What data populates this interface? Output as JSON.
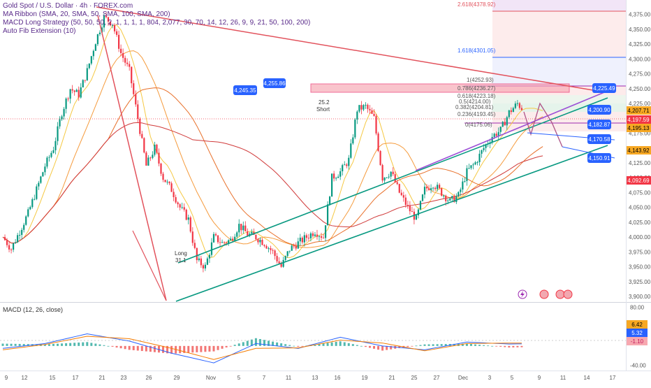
{
  "legend": {
    "title": "Gold Spot / U.S. Dollar · 4h · FOREX.com",
    "ma_ribbon": "MA Ribbon (SMA, 20, SMA, 50, SMA, 100, SMA, 200)",
    "macd_strategy": "MACD Long Strategy (50, 50, 50, 2, 1, 1, 1, 1, 804, 2,077, 30, 70, 14, 12, 26, 9, 9, 21, 50, 100, 200)",
    "fib": "Auto Fib Extension (10)"
  },
  "macd_label": "MACD (12, 26, close)",
  "fib_labels": {
    "f2618": "2.618(4378.92)",
    "f1618": "1.618(4301.05)",
    "f1": "1(4252.93)",
    "f0786": "0.786(4236.27)",
    "f0618": "0.618(4223.18)",
    "f05": "0.5(4214.00)",
    "f0382": "0.382(4204.81)",
    "f0236": "0.236(4193.45)",
    "f0": "0(4175.06)"
  },
  "annotations": {
    "short_val": "25.2",
    "short_txt": "Short",
    "long_txt": "Long",
    "long_val": "31.1"
  },
  "level_tags": {
    "left1": "4,255.86",
    "left2": "4,245.35",
    "r1": "4,225.49",
    "r2": "4,200.90",
    "r3": "4,182.87",
    "r4": "4,170.58",
    "r5": "4,150.91"
  },
  "price_tags": {
    "p1": "4,207.71",
    "p2": "4,197.59",
    "p3": "4,195.13",
    "p4": "4,143.92",
    "p5": "4,092.69"
  },
  "macd_tags": {
    "m1": "6.42",
    "m2": "5.32",
    "m3": "-1.10"
  },
  "colors": {
    "up": "#089981",
    "down": "#f23645",
    "blue_tag": "#2962ff"
  },
  "chart_data": {
    "type": "line",
    "title": "Gold Spot / U.S. Dollar · 4h · FOREX.com",
    "y_axis": {
      "ticks": [
        "4,375.00",
        "4,350.00",
        "4,325.00",
        "4,300.00",
        "4,275.00",
        "4,250.00",
        "4,225.00",
        "4,200.00",
        "4,175.00",
        "4,150.00",
        "4,125.00",
        "4,100.00",
        "4,075.00",
        "4,050.00",
        "4,025.00",
        "4,000.00",
        "3,975.00",
        "3,950.00",
        "3,925.00",
        "3,900.00"
      ],
      "range": [
        3893,
        4390
      ]
    },
    "macd_axis": {
      "ticks": [
        "80.00",
        "-40.00"
      ],
      "range": [
        -45,
        85
      ]
    },
    "x_axis": {
      "ticks": [
        "9",
        "12",
        "15",
        "17",
        "21",
        "23",
        "26",
        "29",
        "Nov",
        "5",
        "7",
        "11",
        "13",
        "16",
        "19",
        "21",
        "25",
        "27",
        "Dec",
        "3",
        "5",
        "9",
        "11",
        "14",
        "17"
      ]
    },
    "price_series": {
      "name": "XAUUSD 4h (approx.)",
      "x_index": [
        0,
        4,
        8,
        12,
        16,
        20,
        24,
        28,
        32,
        36,
        40,
        44,
        48,
        52,
        56,
        60,
        64,
        68,
        72,
        76,
        80,
        84,
        88,
        92,
        96,
        100,
        104,
        108,
        112,
        116,
        120,
        124,
        128,
        132,
        136,
        140,
        144,
        148,
        152,
        156,
        160,
        164,
        168,
        172,
        176,
        180,
        184,
        188,
        192,
        196,
        200,
        204,
        208,
        212,
        216,
        220,
        224,
        228,
        232,
        236,
        240,
        244,
        248,
        252,
        256
      ],
      "y": [
        4000,
        3980,
        4010,
        4040,
        4080,
        4120,
        4150,
        4210,
        4250,
        4240,
        4280,
        4330,
        4370,
        4360,
        4310,
        4280,
        4200,
        4120,
        4150,
        4100,
        4080,
        4050,
        4030,
        3960,
        3950,
        4000,
        3990,
        3995,
        4020,
        4005,
        4000,
        3990,
        3975,
        3950,
        3980,
        3990,
        4000,
        4010,
        4000,
        4100,
        4110,
        4130,
        4215,
        4220,
        4200,
        4100,
        4110,
        4075,
        4050,
        4030,
        4080,
        4090,
        4075,
        4060,
        4070,
        4110,
        4125,
        4150,
        4170,
        4180,
        4210,
        4225,
        4210,
        4220,
        4205
      ]
    },
    "macd_series": [
      {
        "name": "MACD",
        "x_index": [
          0,
          20,
          40,
          60,
          80,
          100,
          120,
          140,
          160,
          180,
          200,
          220,
          240,
          256
        ],
        "y": [
          -5,
          5,
          25,
          10,
          -15,
          -35,
          5,
          -5,
          18,
          0,
          -8,
          8,
          4,
          5
        ]
      },
      {
        "name": "Signal",
        "x_index": [
          0,
          20,
          40,
          60,
          80,
          100,
          120,
          140,
          160,
          180,
          200,
          220,
          240,
          256
        ],
        "y": [
          -8,
          3,
          20,
          15,
          -5,
          -28,
          -5,
          -4,
          12,
          6,
          -10,
          5,
          6,
          6
        ]
      }
    ]
  }
}
